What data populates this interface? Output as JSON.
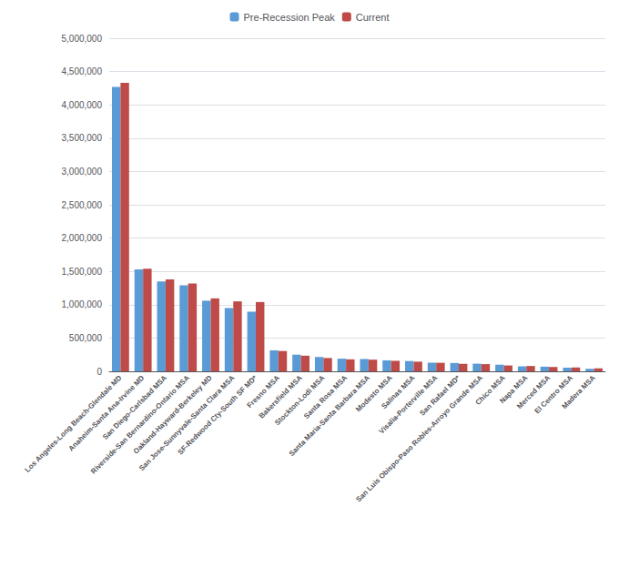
{
  "chart_data": {
    "type": "bar",
    "categories": [
      "Los Angeles-Long Beach-Glendale MD",
      "Anaheim-Santa Ana-Irvine MD",
      "San Diego-Carlsbad MSA",
      "Riverside-San Bernardino-Ontario MSA",
      "Oakland-Hayward-Berkeley MD",
      "San Jose-Sunnyvale-Santa Clara MSA",
      "SF-Redwood Cty-South SF MD*",
      "Fresno MSA",
      "Bakersfield MSA",
      "Stockton-Lodi MSA",
      "Santa Rosa MSA",
      "Santa Maria-Santa Barbara MSA",
      "Modesto MSA",
      "Salinas MSA",
      "Visalia-Porterville MSA",
      "San Rafael MD*",
      "San Luis Obispo-Paso Robles-Arroyo Grande MSA",
      "Chico MSA",
      "Napa MSA",
      "Merced MSA",
      "El Centro MSA",
      "Madera MSA"
    ],
    "series": [
      {
        "name": "Pre-Recession Peak",
        "color": "#5B9BD5",
        "values": [
          4270000,
          1530000,
          1350000,
          1290000,
          1060000,
          950000,
          895000,
          315000,
          250000,
          215000,
          190000,
          185000,
          165000,
          155000,
          130000,
          125000,
          115000,
          100000,
          75000,
          70000,
          55000,
          38000
        ]
      },
      {
        "name": "Current",
        "color": "#BE4B48",
        "values": [
          4330000,
          1540000,
          1380000,
          1320000,
          1095000,
          1050000,
          1040000,
          305000,
          235000,
          200000,
          180000,
          175000,
          158000,
          145000,
          128000,
          112000,
          108000,
          88000,
          80000,
          65000,
          58000,
          45000
        ]
      }
    ],
    "ylim": [
      0,
      5000000
    ],
    "yticks": [
      0,
      {
        "value": 500000,
        "label": "500,000"
      },
      {
        "value": 1000000,
        "label": "1,000,000"
      },
      {
        "value": 1500000,
        "label": "1,500,000"
      },
      {
        "value": 2000000,
        "label": "2,000,000"
      },
      {
        "value": 2500000,
        "label": "2,500,000"
      },
      {
        "value": 3000000,
        "label": "3,000,000"
      },
      {
        "value": 3500000,
        "label": "3,500,000"
      },
      {
        "value": 4000000,
        "label": "4,000,000"
      },
      {
        "value": 4500000,
        "label": "4,500,000"
      },
      {
        "value": 5000000,
        "label": "5,000,000"
      }
    ],
    "grid": true,
    "legend": "top"
  }
}
